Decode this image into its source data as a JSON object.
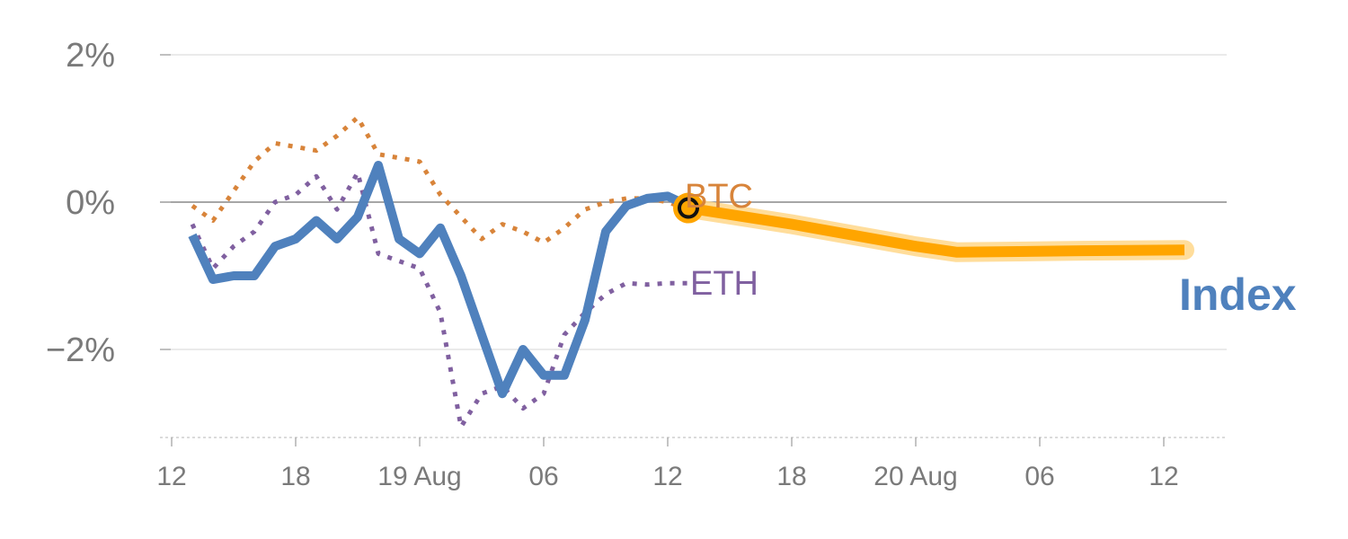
{
  "chart_data": {
    "type": "line",
    "title": "",
    "xlabel": "",
    "ylabel": "",
    "ylim": [
      -3.2,
      2.2
    ],
    "y_ticks": [
      {
        "value": 2,
        "label": "2%"
      },
      {
        "value": 0,
        "label": "0%"
      },
      {
        "value": -2,
        "label": "−2%"
      }
    ],
    "x_ticks": [
      {
        "hour": 0,
        "label": "12"
      },
      {
        "hour": 6,
        "label": "18"
      },
      {
        "hour": 12,
        "label": "19 Aug"
      },
      {
        "hour": 18,
        "label": "06"
      },
      {
        "hour": 24,
        "label": "12"
      },
      {
        "hour": 30,
        "label": "18"
      },
      {
        "hour": 36,
        "label": "20 Aug"
      },
      {
        "hour": 42,
        "label": "06"
      },
      {
        "hour": 48,
        "label": "12"
      }
    ],
    "xlim": [
      0,
      51
    ],
    "grid": true,
    "series": [
      {
        "name": "BTC",
        "color": "#d8843a",
        "style": "dotted",
        "x": [
          1,
          2,
          3,
          4,
          5,
          6,
          7,
          8,
          9,
          10,
          11,
          12,
          13,
          14,
          15,
          16,
          17,
          18,
          19,
          20,
          21,
          22,
          23,
          24,
          25
        ],
        "y": [
          -0.05,
          -0.25,
          0.15,
          0.55,
          0.8,
          0.75,
          0.7,
          0.9,
          1.15,
          0.65,
          0.6,
          0.55,
          0.1,
          -0.2,
          -0.5,
          -0.3,
          -0.4,
          -0.55,
          -0.35,
          -0.1,
          0.0,
          0.05,
          0.05,
          0.0,
          -0.1
        ]
      },
      {
        "name": "ETH",
        "color": "#8060a0",
        "style": "dotted",
        "x": [
          1,
          2,
          3,
          4,
          5,
          6,
          7,
          8,
          9,
          10,
          11,
          12,
          13,
          14,
          15,
          16,
          17,
          18,
          19,
          20,
          21,
          22,
          23,
          24,
          25
        ],
        "y": [
          -0.3,
          -0.9,
          -0.6,
          -0.4,
          0.0,
          0.1,
          0.35,
          -0.1,
          0.4,
          -0.7,
          -0.8,
          -0.9,
          -1.5,
          -3.05,
          -2.6,
          -2.5,
          -2.8,
          -2.6,
          -1.8,
          -1.5,
          -1.25,
          -1.1,
          -1.12,
          -1.1,
          -1.1
        ]
      },
      {
        "name": "Index",
        "color": "#4f81bd",
        "style": "solid",
        "x": [
          1,
          2,
          3,
          4,
          5,
          6,
          7,
          8,
          9,
          10,
          11,
          12,
          13,
          14,
          15,
          16,
          17,
          18,
          19,
          20,
          21,
          22,
          23,
          24,
          25
        ],
        "y": [
          -0.45,
          -1.05,
          -1.0,
          -1.0,
          -0.6,
          -0.5,
          -0.25,
          -0.5,
          -0.2,
          0.5,
          -0.5,
          -0.7,
          -0.35,
          -1.0,
          -1.8,
          -2.6,
          -2.0,
          -2.35,
          -2.35,
          -1.6,
          -0.4,
          -0.05,
          0.05,
          0.08,
          -0.05
        ]
      },
      {
        "name": "Index forecast",
        "color": "#ffa500",
        "style": "band",
        "x": [
          25,
          30,
          36,
          38,
          44,
          49
        ],
        "y": [
          -0.08,
          -0.3,
          -0.6,
          -0.68,
          -0.66,
          -0.65
        ]
      }
    ],
    "labels": {
      "btc": "BTC",
      "eth": "ETH",
      "index": "Index"
    },
    "marker": {
      "x": 25,
      "y": -0.08
    }
  }
}
